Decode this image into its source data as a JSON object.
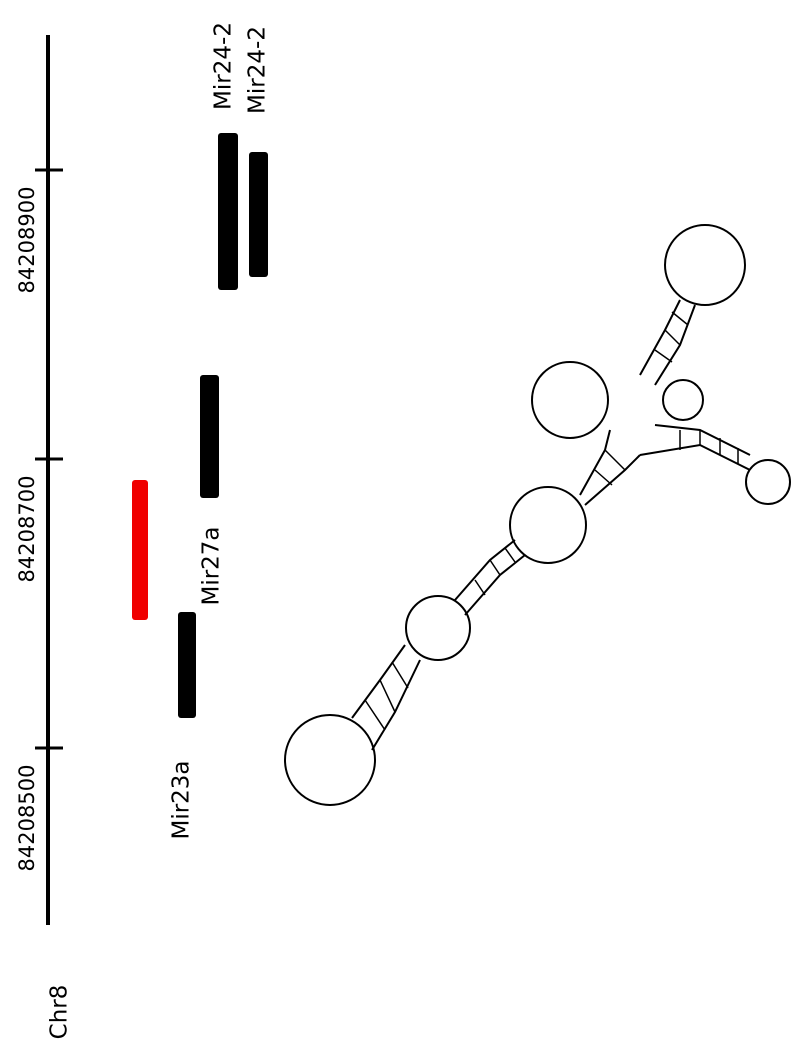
{
  "chromosome": "Chr8",
  "axis": {
    "ticks": [
      "84208500",
      "84208700",
      "84208900"
    ]
  },
  "features": [
    {
      "label": "Mir23a"
    },
    {
      "label": "Mir27a"
    },
    {
      "label": "Mir24-2"
    },
    {
      "label": "Mir24-2"
    }
  ]
}
